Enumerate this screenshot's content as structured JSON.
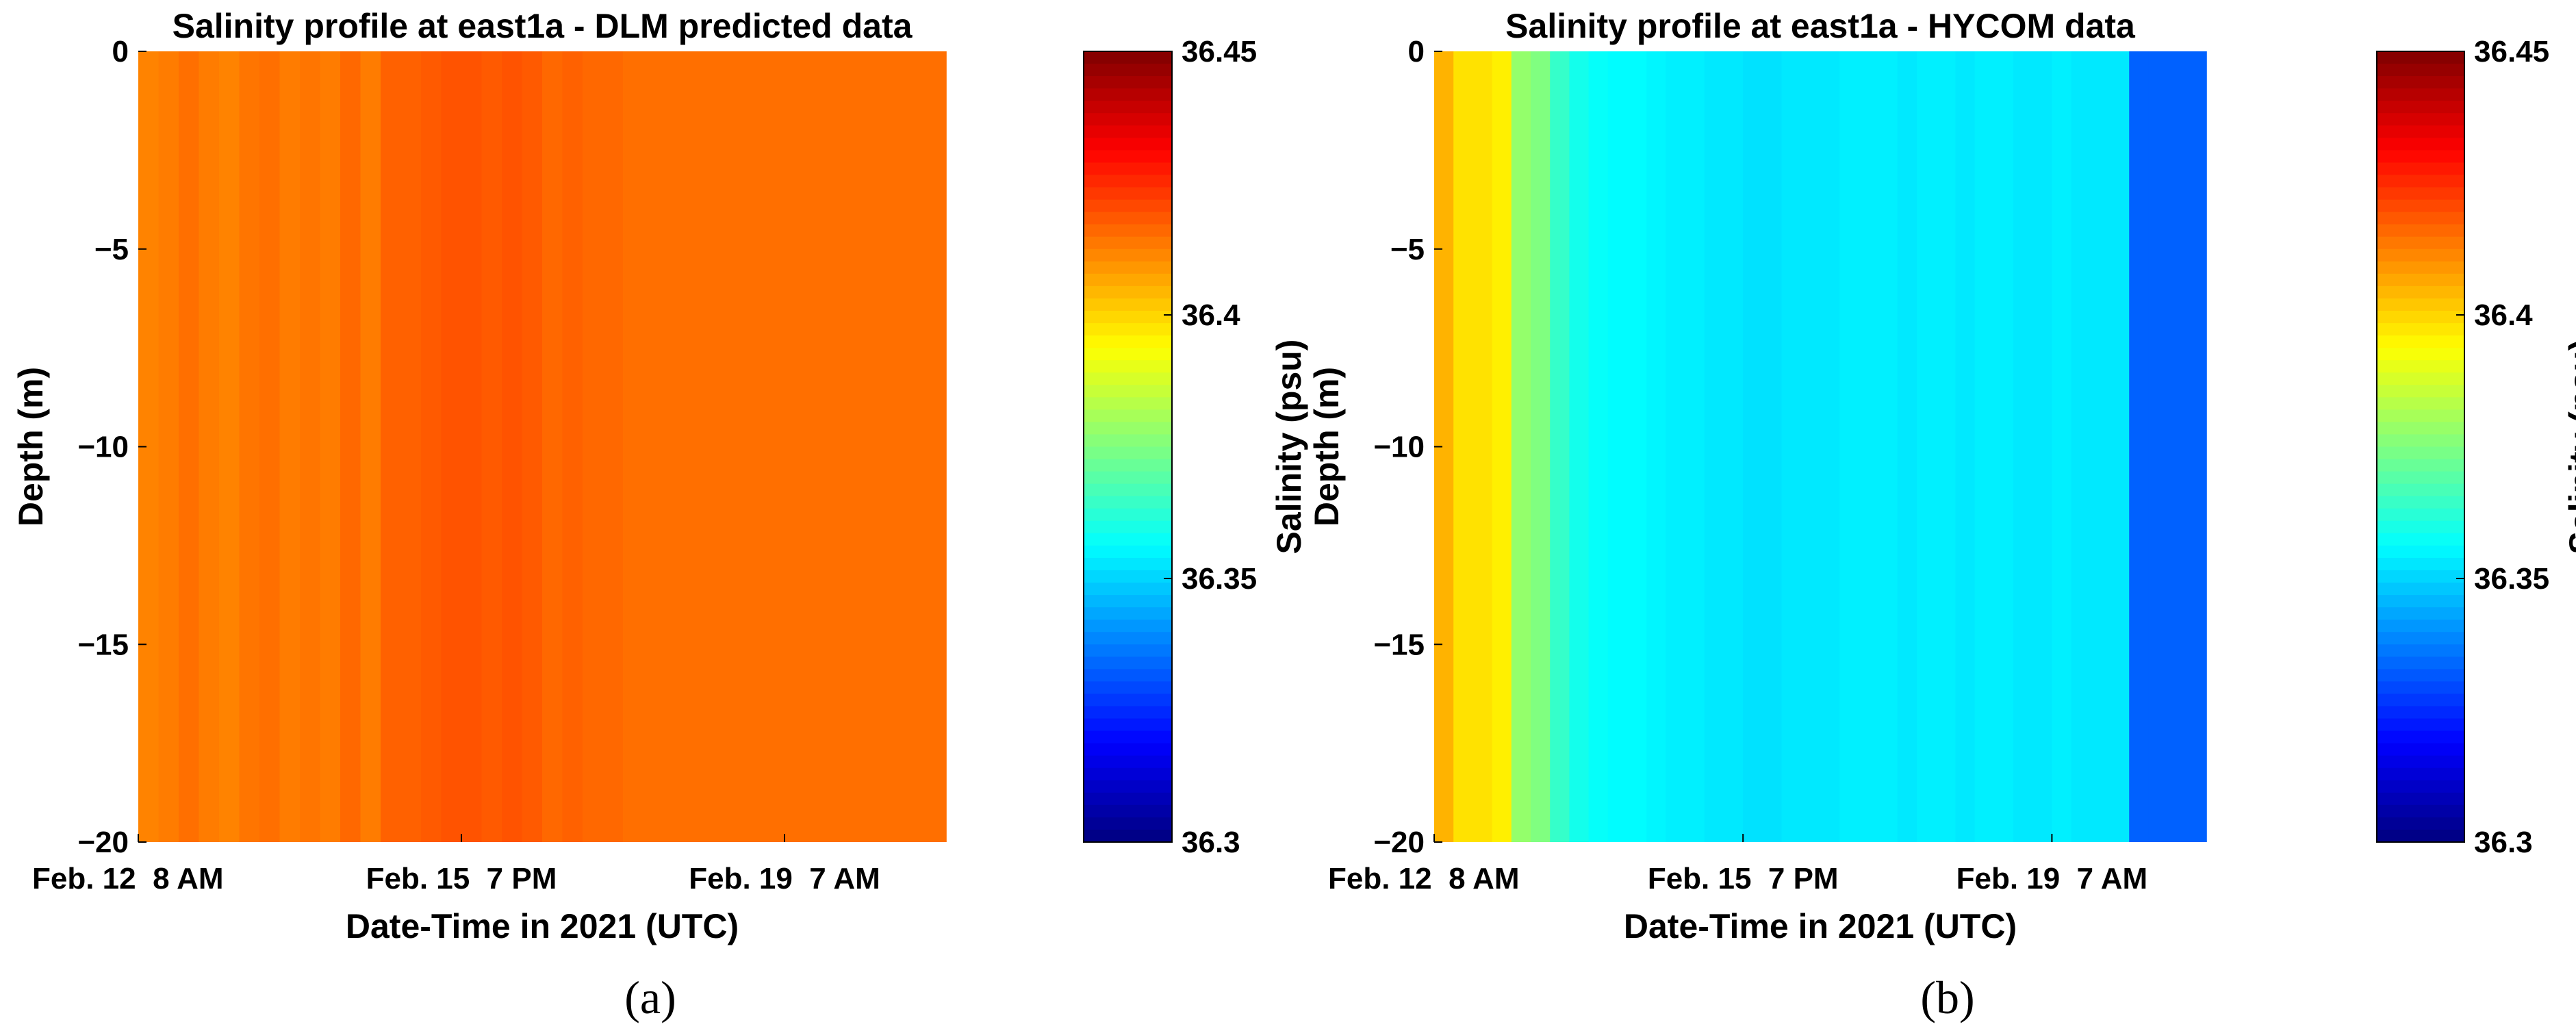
{
  "chart_data": [
    {
      "type": "heatmap",
      "panel_label": "(a)",
      "title": "Salinity profile at east1a - DLM predicted data",
      "xlabel": "Date-Time in 2021 (UTC)",
      "ylabel": "Depth (m)",
      "x_tick_labels": [
        "Feb. 12  8 AM",
        "Feb. 15  7 PM",
        "Feb. 19  7 AM"
      ],
      "y_ticks": [
        0,
        -5,
        -10,
        -15,
        -20
      ],
      "ylim": [
        -20,
        0
      ],
      "colorbar": {
        "label": "Salinity (psu)",
        "ticks": [
          36.3,
          36.35,
          36.4,
          36.45
        ],
        "clim": [
          36.3,
          36.45
        ],
        "colormap": "jet"
      },
      "time_columns": 40,
      "salinity_values": [
        36.412,
        36.413,
        36.415,
        36.413,
        36.412,
        36.414,
        36.415,
        36.413,
        36.414,
        36.413,
        36.416,
        36.413,
        36.417,
        36.417,
        36.418,
        36.419,
        36.419,
        36.418,
        36.419,
        36.418,
        36.416,
        36.417,
        36.416,
        36.416,
        36.415,
        36.415,
        36.415,
        36.415,
        36.415,
        36.415,
        36.415,
        36.415,
        36.415,
        36.415,
        36.415,
        36.415,
        36.415,
        36.415,
        36.415,
        36.415
      ]
    },
    {
      "type": "heatmap",
      "panel_label": "(b)",
      "title": "Salinity profile at east1a - HYCOM data",
      "xlabel": "Date-Time in 2021 (UTC)",
      "ylabel": "Depth (m)",
      "x_tick_labels": [
        "Feb. 12  8 AM",
        "Feb. 15  7 PM",
        "Feb. 19  7 AM"
      ],
      "y_ticks": [
        0,
        -5,
        -10,
        -15,
        -20
      ],
      "ylim": [
        -20,
        0
      ],
      "colorbar": {
        "label": "Salinity (psu)",
        "ticks": [
          36.3,
          36.35,
          36.4,
          36.45
        ],
        "clim": [
          36.3,
          36.45
        ],
        "colormap": "jet"
      },
      "time_columns": 40,
      "salinity_values": [
        36.405,
        36.398,
        36.398,
        36.396,
        36.378,
        36.375,
        36.364,
        36.359,
        36.357,
        36.356,
        36.356,
        36.355,
        36.354,
        36.354,
        36.353,
        36.353,
        36.352,
        36.352,
        36.353,
        36.353,
        36.353,
        36.354,
        36.354,
        36.354,
        36.353,
        36.354,
        36.354,
        36.353,
        36.354,
        36.354,
        36.353,
        36.353,
        36.354,
        36.353,
        36.353,
        36.353,
        36.333,
        36.333,
        36.333,
        36.333
      ]
    }
  ]
}
